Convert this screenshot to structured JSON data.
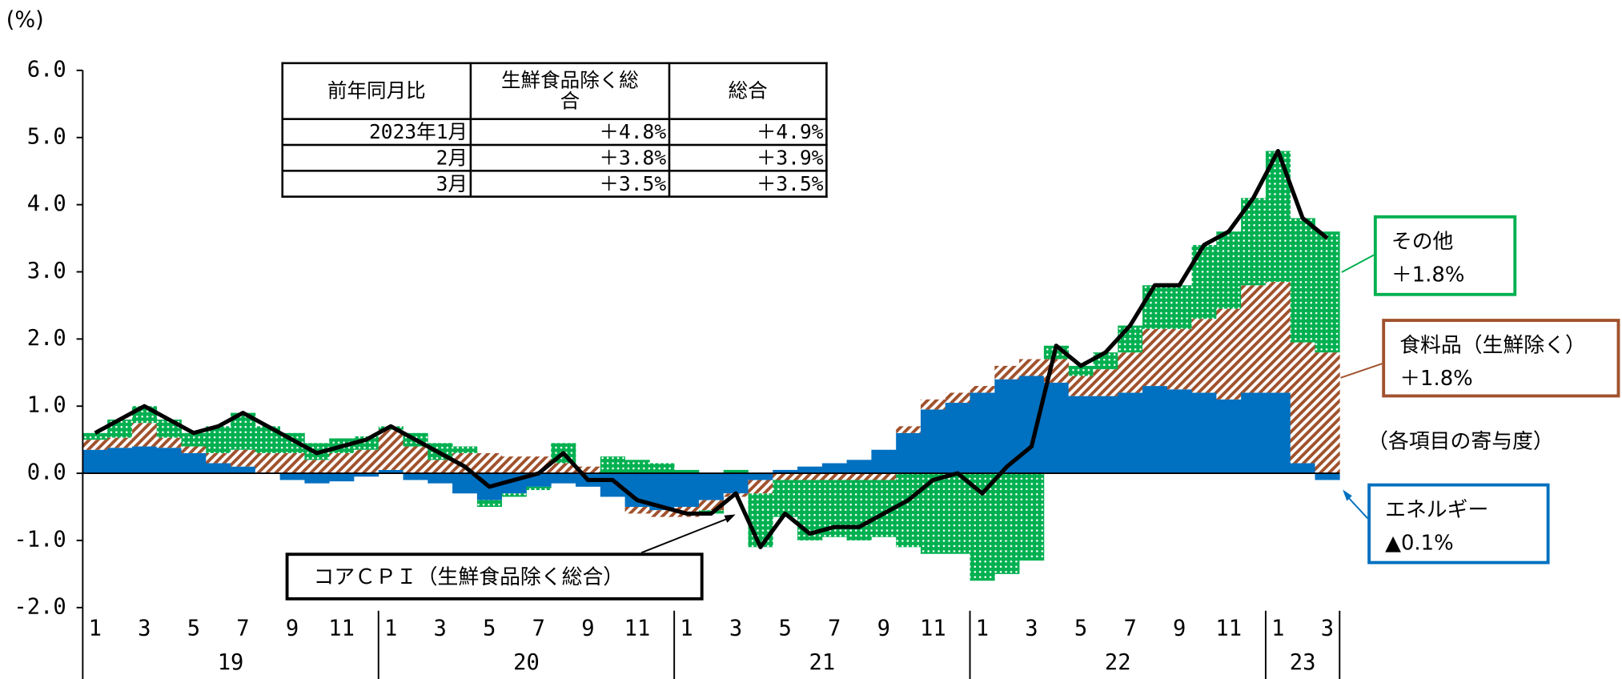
{
  "chart_data": {
    "type": "stacked_bar_line",
    "y_unit": "(%)",
    "ylim": [
      -2,
      6
    ],
    "yticks": [
      {
        "value": -2,
        "label": "-2.0"
      },
      {
        "value": -1,
        "label": "-1.0"
      },
      {
        "value": 0,
        "label": "0.0"
      },
      {
        "value": 1,
        "label": "1.0"
      },
      {
        "value": 2,
        "label": "2.0"
      },
      {
        "value": 3,
        "label": "3.0"
      },
      {
        "value": 4,
        "label": "4.0"
      },
      {
        "value": 5,
        "label": "5.0"
      },
      {
        "value": 6,
        "label": "6.0"
      }
    ],
    "categories": [
      "1",
      null,
      "3",
      null,
      "5",
      null,
      "7",
      null,
      "9",
      null,
      "11",
      null,
      "1",
      null,
      "3",
      null,
      "5",
      null,
      "7",
      null,
      "9",
      null,
      "11",
      null,
      "1",
      null,
      "3",
      null,
      "5",
      null,
      "7",
      null,
      "9",
      null,
      "11",
      null,
      "1",
      null,
      "3",
      null,
      "5",
      null,
      "7",
      null,
      "9",
      null,
      "11",
      null,
      "1",
      null,
      "3"
    ],
    "years": [
      "19",
      "20",
      "21",
      "22",
      "23"
    ],
    "series": [
      {
        "name": "エネルギー",
        "end_label": "▲0.1%",
        "color": "#0070c0",
        "values": [
          0.35,
          0.38,
          0.4,
          0.38,
          0.3,
          0.15,
          0.1,
          0.0,
          -0.1,
          -0.15,
          -0.12,
          -0.05,
          0.05,
          -0.1,
          -0.15,
          -0.3,
          -0.4,
          -0.3,
          -0.2,
          -0.15,
          -0.2,
          -0.35,
          -0.5,
          -0.55,
          -0.5,
          -0.4,
          -0.3,
          -0.1,
          0.05,
          0.1,
          0.15,
          0.2,
          0.35,
          0.6,
          0.95,
          1.05,
          1.2,
          1.4,
          1.45,
          1.35,
          1.15,
          1.15,
          1.2,
          1.3,
          1.25,
          1.2,
          1.1,
          1.2,
          1.2,
          0.15,
          -0.1
        ]
      },
      {
        "name": "食料品（生鮮除く）",
        "end_label": "＋1.8%",
        "color": "#a0522d",
        "values": [
          0.15,
          0.15,
          0.35,
          0.15,
          0.1,
          0.15,
          0.25,
          0.3,
          0.3,
          0.2,
          0.3,
          0.35,
          0.6,
          0.4,
          0.2,
          0.3,
          0.3,
          0.25,
          0.25,
          0.15,
          0.1,
          0.0,
          -0.1,
          -0.1,
          -0.15,
          -0.15,
          -0.05,
          -0.2,
          -0.1,
          -0.1,
          -0.1,
          -0.1,
          -0.1,
          0.1,
          0.15,
          0.15,
          0.1,
          0.2,
          0.25,
          0.35,
          0.3,
          0.4,
          0.6,
          0.85,
          0.9,
          1.1,
          1.35,
          1.6,
          1.65,
          1.8,
          1.8
        ]
      },
      {
        "name": "その他",
        "end_label": "＋1.8%",
        "color": "#00b050",
        "values": [
          0.1,
          0.27,
          0.25,
          0.27,
          0.2,
          0.4,
          0.55,
          0.4,
          0.3,
          0.25,
          0.22,
          0.2,
          0.05,
          0.2,
          0.25,
          0.1,
          -0.1,
          -0.05,
          -0.05,
          0.3,
          0.0,
          0.25,
          0.2,
          0.15,
          0.05,
          -0.05,
          0.05,
          -0.8,
          -0.55,
          -0.9,
          -0.85,
          -0.9,
          -0.85,
          -1.1,
          -1.2,
          -1.2,
          -1.6,
          -1.5,
          -1.3,
          0.2,
          0.15,
          0.25,
          0.4,
          0.65,
          0.65,
          1.1,
          1.15,
          1.3,
          1.95,
          1.85,
          1.8
        ]
      },
      {
        "name": "コアＣＰＩ（生鮮食品除く総合）",
        "color": "#000000",
        "kind": "line",
        "values": [
          0.6,
          0.8,
          1.0,
          0.8,
          0.6,
          0.7,
          0.9,
          0.7,
          0.5,
          0.3,
          0.4,
          0.5,
          0.7,
          0.5,
          0.3,
          0.1,
          -0.2,
          -0.1,
          0.0,
          0.3,
          -0.1,
          -0.1,
          -0.4,
          -0.5,
          -0.6,
          -0.6,
          -0.3,
          -1.1,
          -0.6,
          -0.9,
          -0.8,
          -0.8,
          -0.6,
          -0.4,
          -0.1,
          0.0,
          -0.3,
          0.1,
          0.4,
          1.9,
          1.6,
          1.8,
          2.2,
          2.8,
          2.8,
          3.4,
          3.6,
          4.1,
          4.8,
          3.8,
          3.5
        ]
      }
    ],
    "legend_note": "（各項目の寄与度）",
    "table": {
      "header": [
        "前年同月比",
        "生鮮食品除く総合",
        "総合"
      ],
      "rows": [
        [
          "2023年1月",
          "＋4.8%",
          "＋4.9%"
        ],
        [
          "2月",
          "＋3.8%",
          "＋3.9%"
        ],
        [
          "3月",
          "＋3.5%",
          "＋3.5%"
        ]
      ]
    }
  }
}
